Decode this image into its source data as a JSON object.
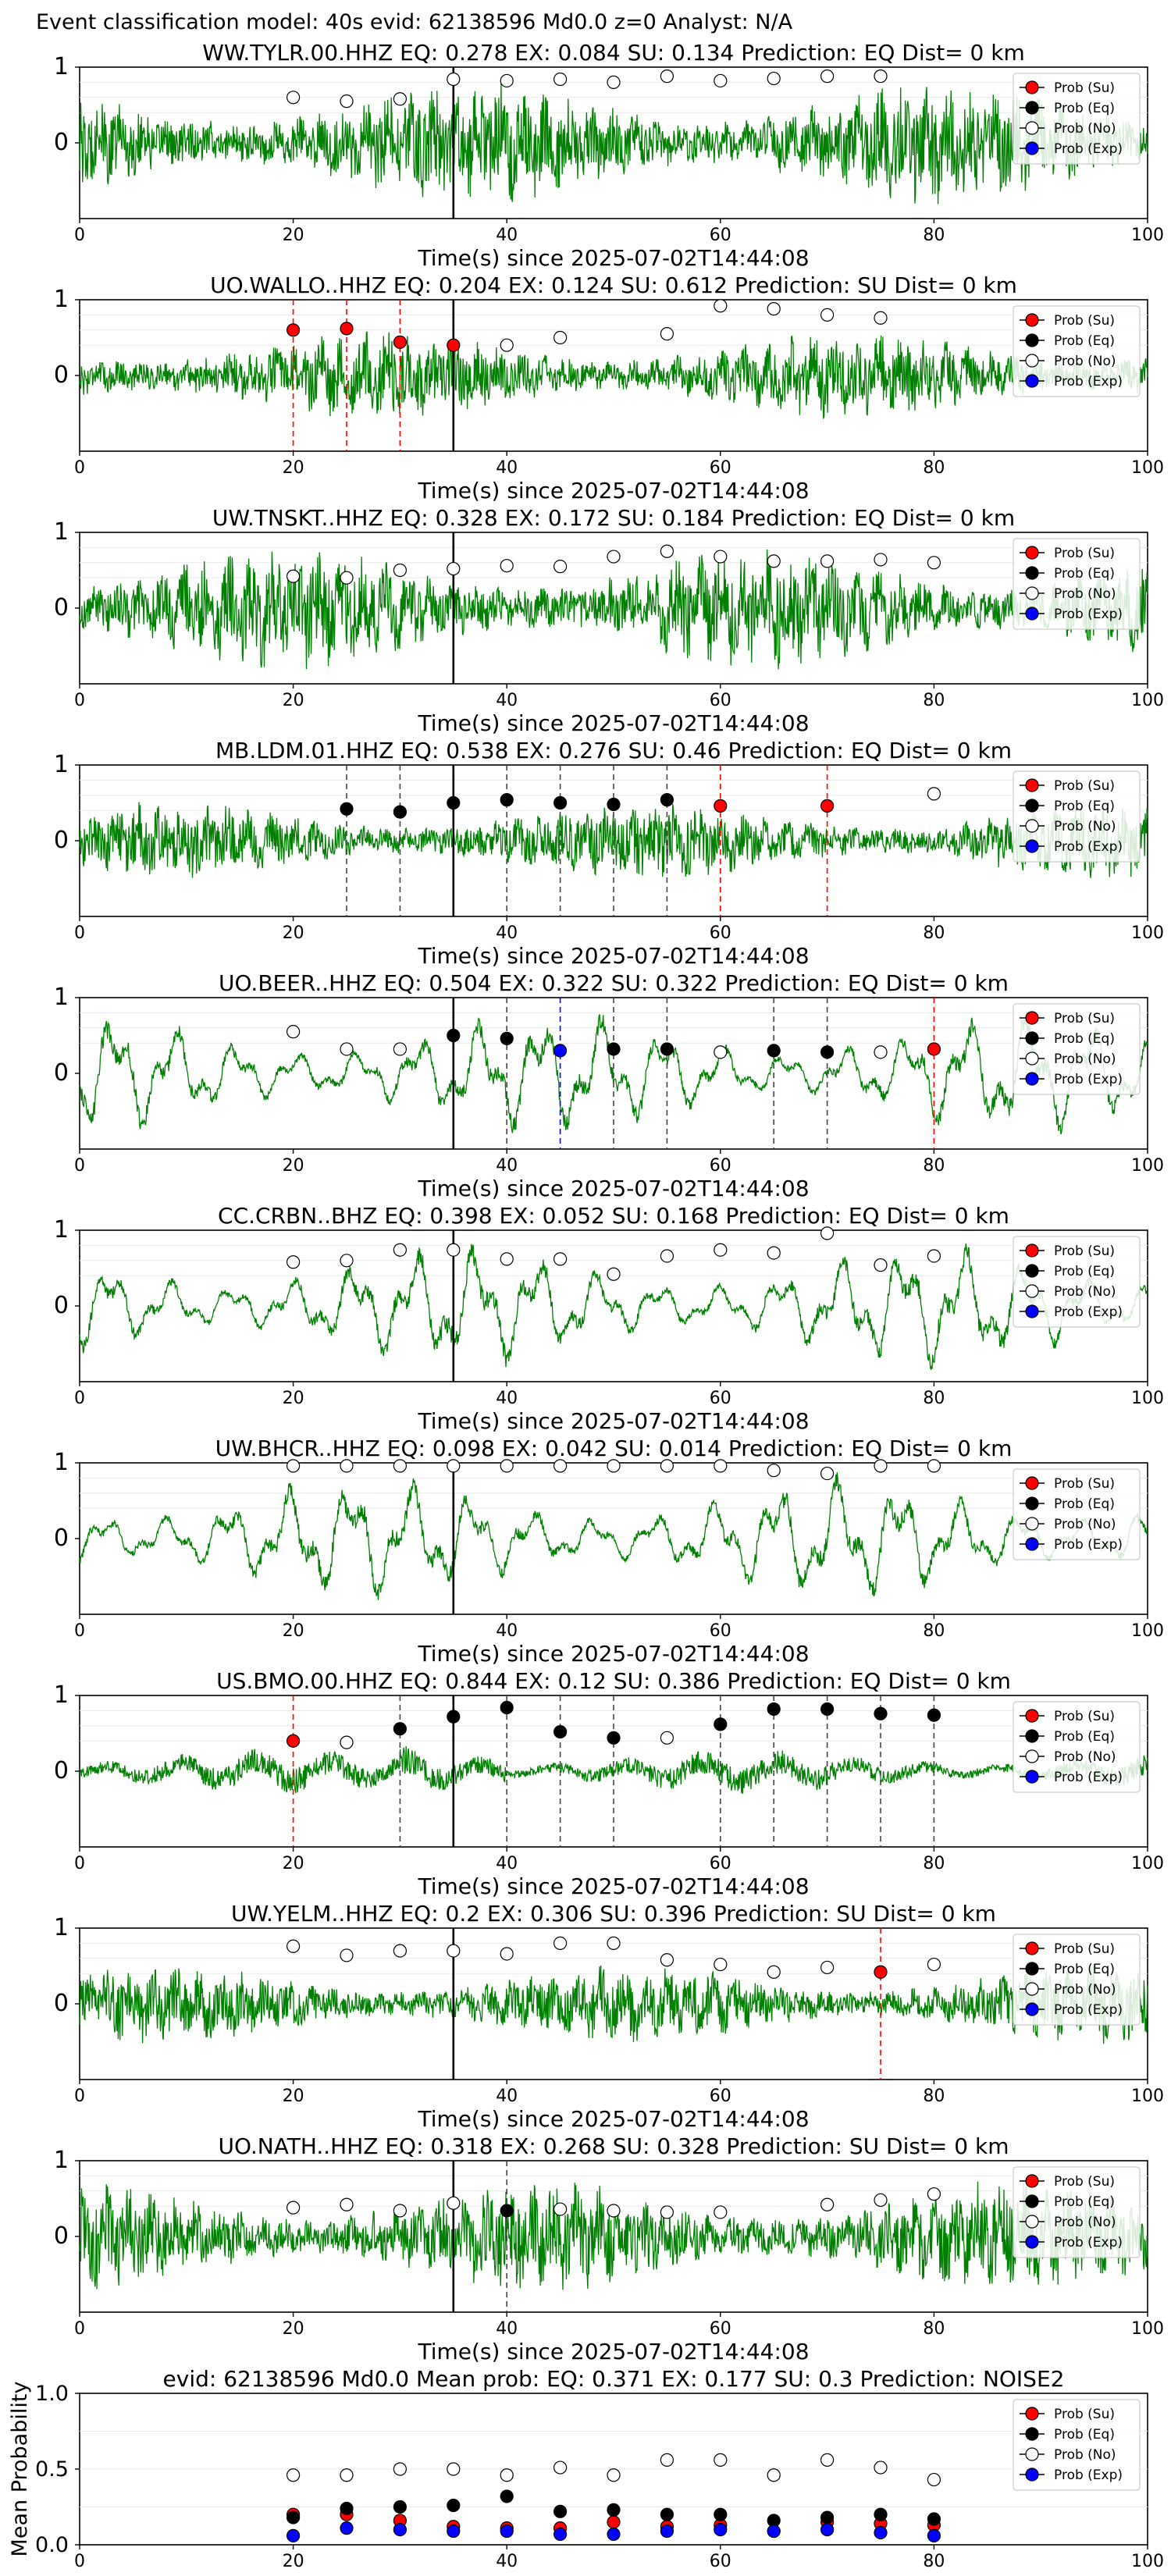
{
  "suptitle": "Event classification model: 40s evid: 62138596 Md0.0 z=0 Analyst: N/A",
  "colors": {
    "waveform": "#008000",
    "su": "#ff0000",
    "eq": "#000000",
    "no": "#ffffff",
    "exp": "#0000ff",
    "event_line": "#000000",
    "su_line": "#ff0000",
    "eq_line": "#444444",
    "exp_line": "#0000ff"
  },
  "legend_labels": [
    "Prob (Su)",
    "Prob (Eq)",
    "Prob (No)",
    "Prob (Exp)"
  ],
  "chart_data": [
    {
      "type": "line",
      "title": "WW.TYLR.00.HHZ   EQ: 0.278  EX: 0.084  SU: 0.134   Prediction: EQ    Dist= 0 km",
      "xlabel": "Time(s) since 2025-07-02T14:44:08",
      "xlim": [
        0,
        100
      ],
      "ylim": [
        -1,
        1
      ],
      "xticks": [
        "0",
        "20",
        "40",
        "60",
        "80",
        "100"
      ],
      "yticks": [
        "0",
        "1"
      ],
      "event_time": 35,
      "legend": "top-right",
      "character": "noise",
      "amplitude": 0.55,
      "points": [
        {
          "t": 20,
          "c": "no",
          "p": 0.6
        },
        {
          "t": 25,
          "c": "no",
          "p": 0.55
        },
        {
          "t": 30,
          "c": "no",
          "p": 0.58
        },
        {
          "t": 35,
          "c": "no",
          "p": 0.84
        },
        {
          "t": 40,
          "c": "no",
          "p": 0.82
        },
        {
          "t": 45,
          "c": "no",
          "p": 0.84
        },
        {
          "t": 50,
          "c": "no",
          "p": 0.8
        },
        {
          "t": 55,
          "c": "no",
          "p": 0.88
        },
        {
          "t": 60,
          "c": "no",
          "p": 0.82
        },
        {
          "t": 65,
          "c": "no",
          "p": 0.85
        },
        {
          "t": 70,
          "c": "no",
          "p": 0.88
        },
        {
          "t": 75,
          "c": "no",
          "p": 0.88
        }
      ]
    },
    {
      "type": "line",
      "title": "UO.WALLO..HHZ   EQ: 0.204  EX: 0.124  SU: 0.612   Prediction: SU    Dist= 0 km",
      "xlabel": "Time(s) since 2025-07-02T14:44:08",
      "xlim": [
        0,
        100
      ],
      "ylim": [
        -1,
        1
      ],
      "xticks": [
        "0",
        "20",
        "40",
        "60",
        "80",
        "100"
      ],
      "yticks": [
        "0",
        "1"
      ],
      "event_time": 35,
      "legend": "top-right",
      "character": "noise",
      "amplitude": 0.4,
      "points": [
        {
          "t": 20,
          "c": "su",
          "p": 0.6
        },
        {
          "t": 25,
          "c": "su",
          "p": 0.62
        },
        {
          "t": 30,
          "c": "su",
          "p": 0.44
        },
        {
          "t": 35,
          "c": "su",
          "p": 0.4
        },
        {
          "t": 40,
          "c": "no",
          "p": 0.4
        },
        {
          "t": 45,
          "c": "no",
          "p": 0.5
        },
        {
          "t": 55,
          "c": "no",
          "p": 0.55
        },
        {
          "t": 60,
          "c": "no",
          "p": 0.92
        },
        {
          "t": 65,
          "c": "no",
          "p": 0.88
        },
        {
          "t": 70,
          "c": "no",
          "p": 0.8
        },
        {
          "t": 75,
          "c": "no",
          "p": 0.76
        }
      ]
    },
    {
      "type": "line",
      "title": "UW.TNSKT..HHZ   EQ: 0.328  EX: 0.172  SU: 0.184   Prediction: EQ    Dist= 0 km",
      "xlabel": "Time(s) since 2025-07-02T14:44:08",
      "xlim": [
        0,
        100
      ],
      "ylim": [
        -1,
        1
      ],
      "xticks": [
        "0",
        "20",
        "40",
        "60",
        "80",
        "100"
      ],
      "yticks": [
        "0",
        "1"
      ],
      "event_time": 35,
      "legend": "top-right",
      "character": "noise",
      "amplitude": 0.55,
      "points": [
        {
          "t": 20,
          "c": "no",
          "p": 0.42
        },
        {
          "t": 25,
          "c": "no",
          "p": 0.4
        },
        {
          "t": 30,
          "c": "no",
          "p": 0.5
        },
        {
          "t": 35,
          "c": "no",
          "p": 0.52
        },
        {
          "t": 40,
          "c": "no",
          "p": 0.56
        },
        {
          "t": 45,
          "c": "no",
          "p": 0.55
        },
        {
          "t": 50,
          "c": "no",
          "p": 0.68
        },
        {
          "t": 55,
          "c": "no",
          "p": 0.75
        },
        {
          "t": 60,
          "c": "no",
          "p": 0.68
        },
        {
          "t": 65,
          "c": "no",
          "p": 0.62
        },
        {
          "t": 70,
          "c": "no",
          "p": 0.62
        },
        {
          "t": 75,
          "c": "no",
          "p": 0.64
        },
        {
          "t": 80,
          "c": "no",
          "p": 0.6
        }
      ]
    },
    {
      "type": "line",
      "title": "MB.LDM.01.HHZ   EQ: 0.538  EX: 0.276  SU: 0.46   Prediction: EQ    Dist= 0 km",
      "xlabel": "Time(s) since 2025-07-02T14:44:08",
      "xlim": [
        0,
        100
      ],
      "ylim": [
        -1,
        1
      ],
      "xticks": [
        "0",
        "20",
        "40",
        "60",
        "80",
        "100"
      ],
      "yticks": [
        "0",
        "1"
      ],
      "event_time": 35,
      "legend": "top-right",
      "character": "noise",
      "amplitude": 0.35,
      "points": [
        {
          "t": 25,
          "c": "eq",
          "p": 0.42
        },
        {
          "t": 30,
          "c": "eq",
          "p": 0.38
        },
        {
          "t": 35,
          "c": "eq",
          "p": 0.5
        },
        {
          "t": 40,
          "c": "eq",
          "p": 0.54
        },
        {
          "t": 45,
          "c": "eq",
          "p": 0.5
        },
        {
          "t": 50,
          "c": "eq",
          "p": 0.48
        },
        {
          "t": 55,
          "c": "eq",
          "p": 0.54
        },
        {
          "t": 60,
          "c": "su",
          "p": 0.46
        },
        {
          "t": 70,
          "c": "su",
          "p": 0.46
        },
        {
          "t": 80,
          "c": "no",
          "p": 0.62
        }
      ]
    },
    {
      "type": "line",
      "title": "UO.BEER..HHZ   EQ: 0.504  EX: 0.322  SU: 0.322   Prediction: EQ    Dist= 0 km",
      "xlabel": "Time(s) since 2025-07-02T14:44:08",
      "xlim": [
        0,
        100
      ],
      "ylim": [
        -1,
        1
      ],
      "xticks": [
        "0",
        "20",
        "40",
        "60",
        "80",
        "100"
      ],
      "yticks": [
        "0",
        "1"
      ],
      "event_time": 35,
      "legend": "top-right",
      "character": "waves",
      "amplitude": 0.6,
      "points": [
        {
          "t": 20,
          "c": "no",
          "p": 0.55
        },
        {
          "t": 25,
          "c": "no",
          "p": 0.32
        },
        {
          "t": 30,
          "c": "no",
          "p": 0.32
        },
        {
          "t": 35,
          "c": "eq",
          "p": 0.5
        },
        {
          "t": 40,
          "c": "eq",
          "p": 0.46
        },
        {
          "t": 45,
          "c": "exp",
          "p": 0.3
        },
        {
          "t": 50,
          "c": "eq",
          "p": 0.32
        },
        {
          "t": 55,
          "c": "eq",
          "p": 0.32
        },
        {
          "t": 60,
          "c": "no",
          "p": 0.28
        },
        {
          "t": 65,
          "c": "eq",
          "p": 0.3
        },
        {
          "t": 70,
          "c": "eq",
          "p": 0.28
        },
        {
          "t": 75,
          "c": "no",
          "p": 0.28
        },
        {
          "t": 80,
          "c": "su",
          "p": 0.32
        }
      ]
    },
    {
      "type": "line",
      "title": "CC.CRBN..BHZ   EQ: 0.398  EX: 0.052  SU: 0.168   Prediction: EQ    Dist= 0 km",
      "xlabel": "Time(s) since 2025-07-02T14:44:08",
      "xlim": [
        0,
        100
      ],
      "ylim": [
        -1,
        1
      ],
      "xticks": [
        "0",
        "20",
        "40",
        "60",
        "80",
        "100"
      ],
      "yticks": [
        "0",
        "1"
      ],
      "event_time": 35,
      "legend": "top-right",
      "character": "waves",
      "amplitude": 0.6,
      "points": [
        {
          "t": 20,
          "c": "no",
          "p": 0.58
        },
        {
          "t": 25,
          "c": "no",
          "p": 0.6
        },
        {
          "t": 30,
          "c": "no",
          "p": 0.74
        },
        {
          "t": 35,
          "c": "no",
          "p": 0.74
        },
        {
          "t": 40,
          "c": "no",
          "p": 0.62
        },
        {
          "t": 45,
          "c": "no",
          "p": 0.62
        },
        {
          "t": 50,
          "c": "no",
          "p": 0.42
        },
        {
          "t": 55,
          "c": "no",
          "p": 0.66
        },
        {
          "t": 60,
          "c": "no",
          "p": 0.74
        },
        {
          "t": 65,
          "c": "no",
          "p": 0.7
        },
        {
          "t": 70,
          "c": "no",
          "p": 0.96
        },
        {
          "t": 75,
          "c": "no",
          "p": 0.54
        },
        {
          "t": 80,
          "c": "no",
          "p": 0.66
        }
      ]
    },
    {
      "type": "line",
      "title": "UW.BHCR..HHZ   EQ: 0.098  EX: 0.042  SU: 0.014   Prediction: EQ    Dist= 0 km",
      "xlabel": "Time(s) since 2025-07-02T14:44:08",
      "xlim": [
        0,
        100
      ],
      "ylim": [
        -1,
        1
      ],
      "xticks": [
        "0",
        "20",
        "40",
        "60",
        "80",
        "100"
      ],
      "yticks": [
        "0",
        "1"
      ],
      "event_time": 35,
      "legend": "top-right",
      "character": "waves",
      "amplitude": 0.6,
      "points": [
        {
          "t": 20,
          "c": "no",
          "p": 0.96
        },
        {
          "t": 25,
          "c": "no",
          "p": 0.96
        },
        {
          "t": 30,
          "c": "no",
          "p": 0.96
        },
        {
          "t": 35,
          "c": "no",
          "p": 0.96
        },
        {
          "t": 40,
          "c": "no",
          "p": 0.96
        },
        {
          "t": 45,
          "c": "no",
          "p": 0.96
        },
        {
          "t": 50,
          "c": "no",
          "p": 0.96
        },
        {
          "t": 55,
          "c": "no",
          "p": 0.96
        },
        {
          "t": 60,
          "c": "no",
          "p": 0.96
        },
        {
          "t": 65,
          "c": "no",
          "p": 0.9
        },
        {
          "t": 70,
          "c": "no",
          "p": 0.86
        },
        {
          "t": 75,
          "c": "no",
          "p": 0.96
        },
        {
          "t": 80,
          "c": "no",
          "p": 0.96
        }
      ]
    },
    {
      "type": "line",
      "title": "US.BMO.00.HHZ   EQ: 0.844  EX: 0.12  SU: 0.386   Prediction: EQ    Dist= 0 km",
      "xlabel": "Time(s) since 2025-07-02T14:44:08",
      "xlim": [
        0,
        100
      ],
      "ylim": [
        -1,
        1
      ],
      "xticks": [
        "0",
        "20",
        "40",
        "60",
        "80",
        "100"
      ],
      "yticks": [
        "0",
        "1"
      ],
      "event_time": 35,
      "legend": "top-right",
      "character": "low",
      "amplitude": 0.25,
      "points": [
        {
          "t": 20,
          "c": "su",
          "p": 0.4
        },
        {
          "t": 25,
          "c": "no",
          "p": 0.38
        },
        {
          "t": 30,
          "c": "eq",
          "p": 0.56
        },
        {
          "t": 35,
          "c": "eq",
          "p": 0.72
        },
        {
          "t": 40,
          "c": "eq",
          "p": 0.84
        },
        {
          "t": 45,
          "c": "eq",
          "p": 0.52
        },
        {
          "t": 50,
          "c": "eq",
          "p": 0.44
        },
        {
          "t": 55,
          "c": "no",
          "p": 0.44
        },
        {
          "t": 60,
          "c": "eq",
          "p": 0.62
        },
        {
          "t": 65,
          "c": "eq",
          "p": 0.82
        },
        {
          "t": 70,
          "c": "eq",
          "p": 0.82
        },
        {
          "t": 75,
          "c": "eq",
          "p": 0.76
        },
        {
          "t": 80,
          "c": "eq",
          "p": 0.74
        }
      ]
    },
    {
      "type": "line",
      "title": "UW.YELM..HHZ   EQ: 0.2  EX: 0.306  SU: 0.396   Prediction: SU    Dist= 0 km",
      "xlabel": "Time(s) since 2025-07-02T14:44:08",
      "xlim": [
        0,
        100
      ],
      "ylim": [
        -1,
        1
      ],
      "xticks": [
        "0",
        "20",
        "40",
        "60",
        "80",
        "100"
      ],
      "yticks": [
        "0",
        "1"
      ],
      "event_time": 35,
      "legend": "top-right",
      "character": "noise",
      "amplitude": 0.35,
      "points": [
        {
          "t": 20,
          "c": "no",
          "p": 0.76
        },
        {
          "t": 25,
          "c": "no",
          "p": 0.64
        },
        {
          "t": 30,
          "c": "no",
          "p": 0.7
        },
        {
          "t": 35,
          "c": "no",
          "p": 0.7
        },
        {
          "t": 40,
          "c": "no",
          "p": 0.66
        },
        {
          "t": 45,
          "c": "no",
          "p": 0.8
        },
        {
          "t": 50,
          "c": "no",
          "p": 0.8
        },
        {
          "t": 55,
          "c": "no",
          "p": 0.58
        },
        {
          "t": 60,
          "c": "no",
          "p": 0.52
        },
        {
          "t": 65,
          "c": "no",
          "p": 0.42
        },
        {
          "t": 70,
          "c": "no",
          "p": 0.48
        },
        {
          "t": 75,
          "c": "su",
          "p": 0.42
        },
        {
          "t": 80,
          "c": "no",
          "p": 0.52
        }
      ]
    },
    {
      "type": "line",
      "title": "UO.NATH..HHZ   EQ: 0.318  EX: 0.268  SU: 0.328   Prediction: SU    Dist= 0 km",
      "xlabel": "Time(s) since 2025-07-02T14:44:08",
      "xlim": [
        0,
        100
      ],
      "ylim": [
        -1,
        1
      ],
      "xticks": [
        "0",
        "20",
        "40",
        "60",
        "80",
        "100"
      ],
      "yticks": [
        "0",
        "1"
      ],
      "event_time": 35,
      "legend": "top-right",
      "character": "noise",
      "amplitude": 0.5,
      "points": [
        {
          "t": 20,
          "c": "no",
          "p": 0.38
        },
        {
          "t": 25,
          "c": "no",
          "p": 0.42
        },
        {
          "t": 30,
          "c": "no",
          "p": 0.34
        },
        {
          "t": 35,
          "c": "no",
          "p": 0.44
        },
        {
          "t": 40,
          "c": "eq",
          "p": 0.34
        },
        {
          "t": 45,
          "c": "no",
          "p": 0.36
        },
        {
          "t": 50,
          "c": "no",
          "p": 0.34
        },
        {
          "t": 55,
          "c": "no",
          "p": 0.32
        },
        {
          "t": 60,
          "c": "no",
          "p": 0.32
        },
        {
          "t": 70,
          "c": "no",
          "p": 0.42
        },
        {
          "t": 75,
          "c": "no",
          "p": 0.48
        },
        {
          "t": 80,
          "c": "no",
          "p": 0.56
        }
      ]
    },
    {
      "type": "scatter",
      "title": "evid: 62138596   Md0.0   Mean prob:   EQ: 0.371  EX: 0.177  SU: 0.3   Prediction: NOISE2",
      "ylabel": "Mean Probability",
      "xlim": [
        0,
        100
      ],
      "ylim": [
        0,
        1
      ],
      "xticks": [
        "0",
        "20",
        "40",
        "60",
        "80",
        "100"
      ],
      "yticks": [
        "0.0",
        "0.5",
        "1.0"
      ],
      "legend": "top-right",
      "x": [
        20,
        25,
        30,
        35,
        40,
        45,
        50,
        55,
        60,
        65,
        70,
        75,
        80
      ],
      "series": [
        {
          "name": "Prob (Su)",
          "values": [
            0.2,
            0.2,
            0.16,
            0.12,
            0.11,
            0.11,
            0.15,
            0.12,
            0.13,
            0.09,
            0.15,
            0.14,
            0.13
          ]
        },
        {
          "name": "Prob (Eq)",
          "values": [
            0.18,
            0.24,
            0.25,
            0.26,
            0.32,
            0.22,
            0.23,
            0.2,
            0.2,
            0.16,
            0.18,
            0.2,
            0.17
          ]
        },
        {
          "name": "Prob (No)",
          "values": [
            0.46,
            0.46,
            0.5,
            0.5,
            0.46,
            0.51,
            0.46,
            0.56,
            0.56,
            0.46,
            0.56,
            0.51,
            0.43
          ]
        },
        {
          "name": "Prob (Exp)",
          "values": [
            0.06,
            0.11,
            0.1,
            0.09,
            0.09,
            0.07,
            0.07,
            0.09,
            0.1,
            0.09,
            0.1,
            0.08,
            0.06
          ]
        }
      ]
    }
  ]
}
